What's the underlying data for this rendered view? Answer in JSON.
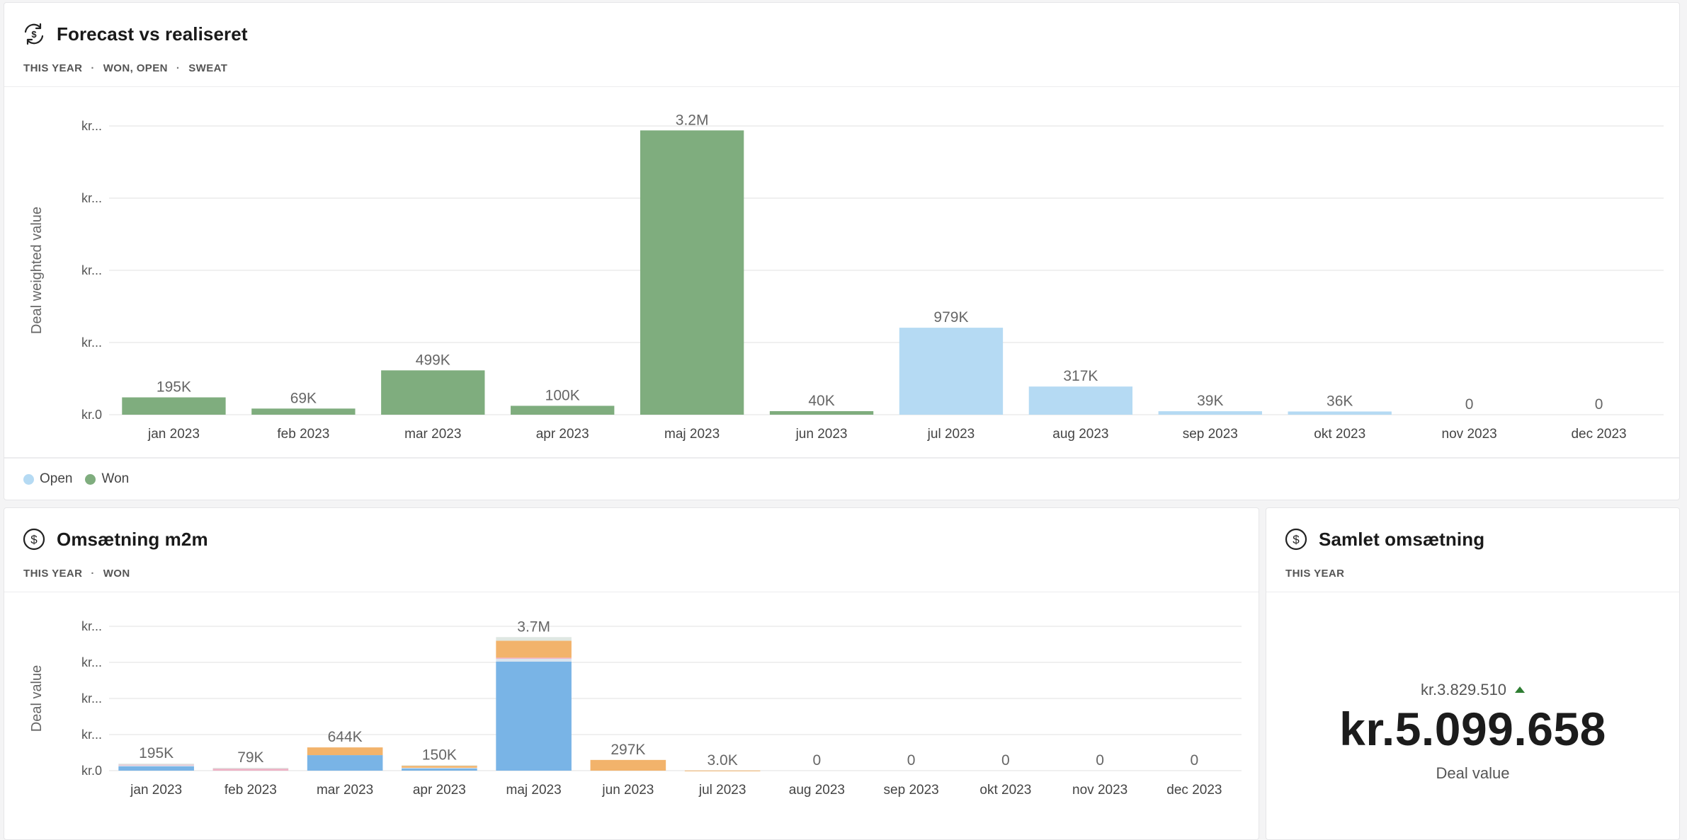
{
  "colors": {
    "won": "#7fad7e",
    "open": "#b5daf3",
    "blue": "#79b4e6",
    "orange": "#f2b36b",
    "pink": "#eeb0c4",
    "grid": "#ececec",
    "tick": "#555555",
    "label": "#666666",
    "kpi_up": "#2e7d32"
  },
  "forecast": {
    "title": "Forecast vs realiseret",
    "icon": "refresh-dollar-icon",
    "filters": [
      "THIS YEAR",
      "WON, OPEN",
      "SWEAT"
    ],
    "legend": [
      {
        "label": "Open",
        "color": "#b5daf3"
      },
      {
        "label": "Won",
        "color": "#7fad7e"
      }
    ]
  },
  "m2m": {
    "title": "Omsætning m2m",
    "icon": "dollar-circle-icon",
    "filters": [
      "THIS YEAR",
      "WON"
    ]
  },
  "total": {
    "title": "Samlet omsætning",
    "icon": "dollar-circle-icon",
    "filters": [
      "THIS YEAR"
    ],
    "compare_value": "kr.3.829.510",
    "value": "kr.5.099.658",
    "label": "Deal value",
    "trend": "up"
  },
  "chart_data": [
    {
      "id": "forecast",
      "type": "bar",
      "stacked": true,
      "ylabel": "Deal weighted value",
      "yticks": [
        "kr.0",
        "kr...",
        "kr...",
        "kr...",
        "kr..."
      ],
      "ylim": [
        0,
        3250000
      ],
      "categories": [
        "jan 2023",
        "feb 2023",
        "mar 2023",
        "apr 2023",
        "maj 2023",
        "jun 2023",
        "jul 2023",
        "aug 2023",
        "sep 2023",
        "okt 2023",
        "nov 2023",
        "dec 2023"
      ],
      "series": [
        {
          "name": "Won",
          "color": "#7fad7e",
          "values": [
            195000,
            69000,
            499000,
            100000,
            3200000,
            40000,
            0,
            0,
            0,
            0,
            0,
            0
          ]
        },
        {
          "name": "Open",
          "color": "#b5daf3",
          "values": [
            0,
            0,
            0,
            0,
            0,
            0,
            979000,
            317000,
            39000,
            36000,
            0,
            0
          ]
        }
      ],
      "totals_labels": [
        "195K",
        "69K",
        "499K",
        "100K",
        "3.2M",
        "40K",
        "979K",
        "317K",
        "39K",
        "36K",
        "0",
        "0"
      ],
      "grid": true
    },
    {
      "id": "m2m",
      "type": "bar",
      "stacked": true,
      "ylabel": "Deal value",
      "yticks": [
        "kr.0",
        "kr...",
        "kr...",
        "kr...",
        "kr..."
      ],
      "ylim": [
        0,
        4000000
      ],
      "categories": [
        "jan 2023",
        "feb 2023",
        "mar 2023",
        "apr 2023",
        "maj 2023",
        "jun 2023",
        "jul 2023",
        "aug 2023",
        "sep 2023",
        "okt 2023",
        "nov 2023",
        "dec 2023"
      ],
      "series": [
        {
          "color": "#79b4e6",
          "values": [
            120000,
            0,
            430000,
            60000,
            3020000,
            0,
            0,
            0,
            0,
            0,
            0,
            0
          ]
        },
        {
          "color": "#d8e4ef",
          "values": [
            30000,
            0,
            0,
            20000,
            80000,
            0,
            0,
            0,
            0,
            0,
            0,
            0
          ]
        },
        {
          "color": "#eeb0c4",
          "values": [
            15000,
            55000,
            0,
            0,
            30000,
            0,
            0,
            0,
            0,
            0,
            0,
            0
          ]
        },
        {
          "color": "#f2b36b",
          "values": [
            0,
            0,
            214000,
            60000,
            470000,
            297000,
            3000,
            0,
            0,
            0,
            0,
            0
          ]
        },
        {
          "color": "#dfe7e2",
          "values": [
            30000,
            24000,
            0,
            10000,
            100000,
            0,
            0,
            0,
            0,
            0,
            0,
            0
          ]
        }
      ],
      "totals_labels": [
        "195K",
        "79K",
        "644K",
        "150K",
        "3.7M",
        "297K",
        "3.0K",
        "0",
        "0",
        "0",
        "0",
        "0"
      ],
      "grid": true
    }
  ]
}
